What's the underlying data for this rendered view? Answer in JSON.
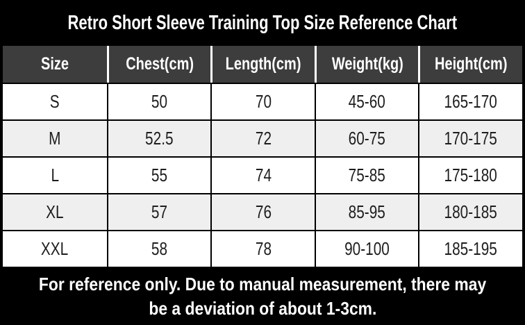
{
  "title": "Retro Short Sleeve Training Top Size Reference Chart",
  "table": {
    "headers": [
      "Size",
      "Chest(cm)",
      "Length(cm)",
      "Weight(kg)",
      "Height(cm)"
    ],
    "rows": [
      [
        "S",
        "50",
        "70",
        "45-60",
        "165-170"
      ],
      [
        "M",
        "52.5",
        "72",
        "60-75",
        "170-175"
      ],
      [
        "L",
        "55",
        "74",
        "75-85",
        "175-180"
      ],
      [
        "XL",
        "57",
        "76",
        "85-95",
        "180-185"
      ],
      [
        "XXL",
        "58",
        "78",
        "90-100",
        "185-195"
      ]
    ]
  },
  "footer": {
    "line1": "For reference only. Due to manual measurement, there may",
    "line2": "be a deviation of about 1-3cm."
  },
  "colors": {
    "title_band_bg": "#000000",
    "title_text": "#ffffff",
    "header_bg": "#3d3d3d",
    "header_text": "#ffffff",
    "alt_row_bg": "#efefef",
    "row_bg": "#ffffff",
    "body_text": "#1d1d1d",
    "grid_border": "#000000",
    "footer_bg": "#000000",
    "footer_text": "#ffffff"
  }
}
